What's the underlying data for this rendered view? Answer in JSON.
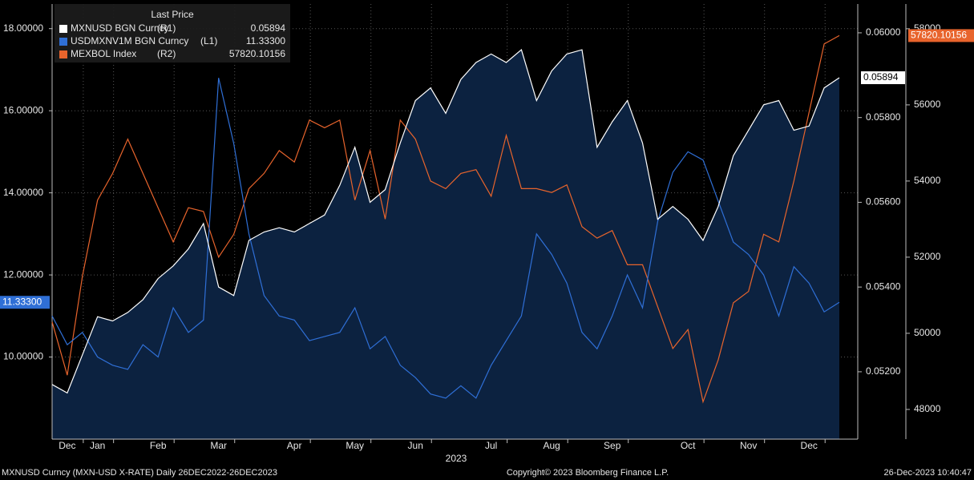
{
  "chart_data": {
    "type": "line",
    "legend_title": "Last Price",
    "categories": [
      null,
      "Dec",
      null,
      "Jan",
      null,
      null,
      null,
      "Feb",
      null,
      null,
      null,
      "Mar",
      null,
      null,
      null,
      null,
      "Apr",
      null,
      null,
      null,
      "May",
      null,
      null,
      null,
      "Jun",
      null,
      null,
      null,
      null,
      "Jul",
      null,
      null,
      null,
      "Aug",
      null,
      null,
      null,
      "Sep",
      null,
      null,
      null,
      null,
      "Oct",
      null,
      null,
      null,
      "Nov",
      null,
      null,
      null,
      "Dec",
      null,
      null
    ],
    "year_label": "2023",
    "series": [
      {
        "name": "MXNUSD BGN Curncy",
        "axis_tag": "(R1)",
        "axis": "y2",
        "color": "#ffffff",
        "area_color": "#0c2240",
        "last_price_label": "0.05894",
        "values": [
          0.0517,
          0.0515,
          0.0524,
          0.0533,
          0.0532,
          0.0534,
          0.0537,
          0.0542,
          0.0545,
          0.0549,
          0.0555,
          0.054,
          0.0538,
          0.0551,
          0.0553,
          0.0554,
          0.0553,
          0.0555,
          0.0557,
          0.0564,
          0.0573,
          0.056,
          0.0563,
          0.0574,
          0.0584,
          0.0587,
          0.0581,
          0.0589,
          0.0593,
          0.0595,
          0.0593,
          0.0596,
          0.0584,
          0.0591,
          0.0595,
          0.0596,
          0.0573,
          0.0579,
          0.0584,
          0.0574,
          0.0556,
          0.0559,
          0.0556,
          0.0551,
          0.0559,
          0.0571,
          0.0577,
          0.0583,
          0.0584,
          0.0577,
          0.0578,
          0.0587,
          0.05894
        ]
      },
      {
        "name": "USDMXNV1M BGN Curncy",
        "axis_tag": "(L1)",
        "axis": "y",
        "color": "#2f6fd6",
        "last_price_label": "11.33300",
        "values": [
          11.0,
          10.3,
          10.6,
          10.0,
          9.8,
          9.7,
          10.3,
          10.0,
          11.2,
          10.6,
          10.9,
          16.8,
          15.2,
          13.0,
          11.5,
          11.0,
          10.9,
          10.4,
          10.5,
          10.6,
          11.2,
          10.2,
          10.5,
          9.8,
          9.5,
          9.1,
          9.0,
          9.3,
          9.0,
          9.8,
          10.4,
          11.0,
          13.0,
          12.5,
          11.8,
          10.6,
          10.2,
          11.0,
          12.0,
          11.2,
          13.3,
          14.5,
          15.0,
          14.8,
          13.8,
          12.8,
          12.5,
          12.0,
          11.0,
          12.2,
          11.8,
          11.1,
          11.333
        ]
      },
      {
        "name": "MEXBOL Index",
        "axis_tag": "(R2)",
        "axis": "y3",
        "color": "#e8642c",
        "last_price_label": "57820.10156",
        "values": [
          50300,
          48900,
          51500,
          53500,
          54200,
          55100,
          54200,
          53300,
          52400,
          53300,
          53200,
          52000,
          52600,
          53800,
          54200,
          54800,
          54500,
          55600,
          55400,
          55600,
          53500,
          54800,
          53000,
          55600,
          55100,
          54000,
          53800,
          54200,
          54300,
          53600,
          55200,
          53800,
          53800,
          53700,
          53900,
          52800,
          52500,
          52700,
          51800,
          51800,
          50700,
          49600,
          50100,
          48200,
          49300,
          50800,
          51100,
          52600,
          52400,
          54000,
          55800,
          57600,
          57820.10156
        ]
      }
    ],
    "ylim": [
      8.0,
      18.6
    ],
    "yticks": [
      {
        "value": 10,
        "label": "10.00000"
      },
      {
        "value": 12,
        "label": "12.00000"
      },
      {
        "value": 14,
        "label": "14.00000"
      },
      {
        "value": 16,
        "label": "16.00000"
      },
      {
        "value": 18,
        "label": "18.00000"
      }
    ],
    "y2lim": [
      0.05041,
      0.06068
    ],
    "y2ticks": [
      {
        "value": 0.052,
        "label": "0.05200"
      },
      {
        "value": 0.054,
        "label": "0.05400"
      },
      {
        "value": 0.056,
        "label": "0.05600"
      },
      {
        "value": 0.058,
        "label": "0.05800"
      },
      {
        "value": 0.06,
        "label": "0.06000"
      }
    ],
    "y3lim": [
      47220,
      58650
    ],
    "y3ticks": [
      48000,
      50000,
      52000,
      54000,
      56000,
      58000
    ],
    "grid": true,
    "footer": {
      "left": "MXNUSD Curncy (MXN-USD X-RATE)  Daily 26DEC2022-26DEC2023",
      "center": "Copyright© 2023 Bloomberg Finance L.P.",
      "right": "26-Dec-2023 10:40:47"
    }
  }
}
